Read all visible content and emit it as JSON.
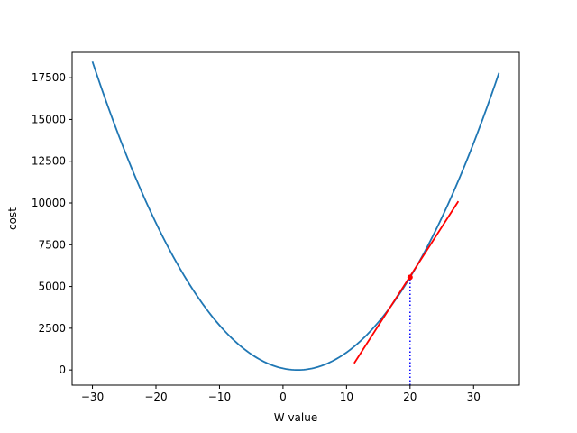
{
  "chart_data": {
    "type": "line",
    "title": "",
    "xlabel": "W value",
    "ylabel": "cost",
    "xlim": [
      -33.2,
      37.2
    ],
    "ylim": [
      -910,
      19020
    ],
    "xticks": [
      -30,
      -20,
      -10,
      0,
      10,
      20,
      30
    ],
    "yticks": [
      0,
      2500,
      5000,
      7500,
      10000,
      12500,
      15000,
      17500
    ],
    "xtick_labels": [
      "−30",
      "−20",
      "−10",
      "0",
      "10",
      "20",
      "30"
    ],
    "ytick_labels": [
      "0",
      "2500",
      "5000",
      "7500",
      "10000",
      "12500",
      "15000",
      "17500"
    ],
    "grid": false,
    "series": [
      {
        "kind": "curve",
        "function": "quadratic",
        "vertex_x": 2.3,
        "vertex_y": 0,
        "coefficient": 17.7,
        "x_range": [
          -30,
          34
        ],
        "color": "#1f77b4"
      },
      {
        "kind": "tangent",
        "x": [
          11.2,
          27.6
        ],
        "y": [
          400,
          10100
        ],
        "color": "#ff0000"
      },
      {
        "kind": "point",
        "x": 20,
        "y": 5550,
        "color": "#ff0000"
      },
      {
        "kind": "vline",
        "x": 20,
        "y": [
          -910,
          5550
        ],
        "color": "#0000ff",
        "style": "dotted"
      }
    ]
  }
}
